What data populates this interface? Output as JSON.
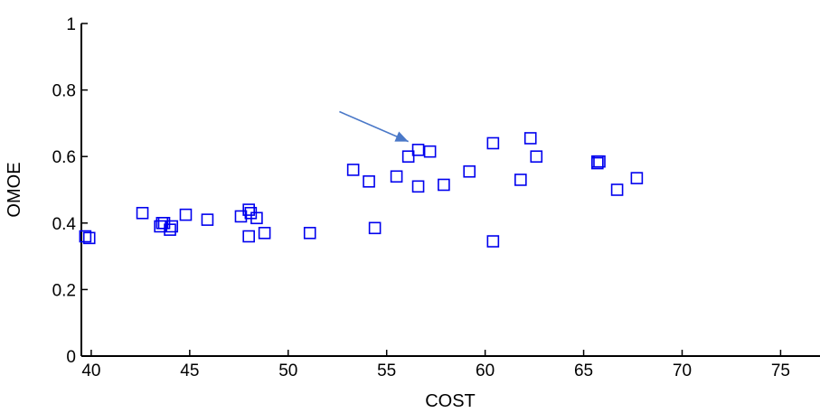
{
  "chart_data": {
    "type": "scatter",
    "title": "",
    "xlabel": "COST",
    "ylabel": "OMOE",
    "xlim": [
      39.5,
      77
    ],
    "ylim": [
      0,
      1
    ],
    "xticks": [
      40,
      45,
      50,
      55,
      60,
      65,
      70,
      75
    ],
    "yticks": [
      0,
      0.2,
      0.4,
      0.6,
      0.8,
      1
    ],
    "xtick_labels": [
      "40",
      "45",
      "50",
      "55",
      "60",
      "65",
      "70",
      "75"
    ],
    "ytick_labels": [
      "0",
      "0.2",
      "0.4",
      "0.6",
      "0.8",
      "1"
    ],
    "grid": false,
    "marker": "square",
    "marker_color": "#0000ee",
    "arrow_color": "#4a78c8",
    "series": [
      {
        "points": [
          [
            39.7,
            0.36
          ],
          [
            39.9,
            0.355
          ],
          [
            42.6,
            0.43
          ],
          [
            43.5,
            0.39
          ],
          [
            43.6,
            0.4
          ],
          [
            43.7,
            0.4
          ],
          [
            44.0,
            0.38
          ],
          [
            44.1,
            0.39
          ],
          [
            44.8,
            0.425
          ],
          [
            45.9,
            0.41
          ],
          [
            47.6,
            0.42
          ],
          [
            48.0,
            0.44
          ],
          [
            48.1,
            0.43
          ],
          [
            48.4,
            0.415
          ],
          [
            48.0,
            0.36
          ],
          [
            48.8,
            0.37
          ],
          [
            51.1,
            0.37
          ],
          [
            53.3,
            0.56
          ],
          [
            54.1,
            0.525
          ],
          [
            54.4,
            0.385
          ],
          [
            55.5,
            0.54
          ],
          [
            56.1,
            0.6
          ],
          [
            56.6,
            0.62
          ],
          [
            56.6,
            0.51
          ],
          [
            57.2,
            0.615
          ],
          [
            57.9,
            0.515
          ],
          [
            59.2,
            0.555
          ],
          [
            60.4,
            0.64
          ],
          [
            60.4,
            0.345
          ],
          [
            61.8,
            0.53
          ],
          [
            62.3,
            0.655
          ],
          [
            62.6,
            0.6
          ],
          [
            65.7,
            0.585
          ],
          [
            65.8,
            0.585
          ],
          [
            65.7,
            0.58
          ],
          [
            66.7,
            0.5
          ],
          [
            67.7,
            0.535
          ]
        ]
      }
    ],
    "annotations": [
      {
        "type": "arrow",
        "from": [
          52.6,
          0.735
        ],
        "to": [
          56.1,
          0.645
        ]
      }
    ]
  }
}
